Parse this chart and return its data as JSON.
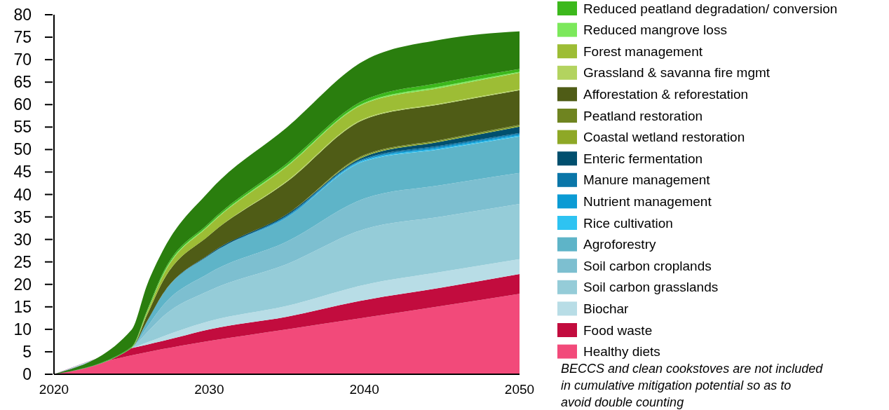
{
  "chart_data": {
    "type": "area",
    "stacked": true,
    "x": [
      2020,
      2025,
      2026,
      2027,
      2030,
      2035,
      2040,
      2045,
      2050
    ],
    "xlim": [
      2020,
      2050
    ],
    "xticks": [
      2020,
      2030,
      2040,
      2050
    ],
    "ylim": [
      0,
      80
    ],
    "yticks": [
      0,
      5,
      10,
      15,
      20,
      25,
      30,
      35,
      40,
      45,
      50,
      55,
      60,
      65,
      70,
      75,
      80
    ],
    "grid": false,
    "legend": "right",
    "annotations": [
      "BECCS and clean cookstoves are not included in cumulative mitigation potential so as to avoid double counting"
    ],
    "series": [
      {
        "name": "Healthy diets",
        "color": "#f24a7a",
        "values": [
          0,
          4.2,
          4.9,
          5.6,
          7.4,
          10.0,
          12.6,
          15.2,
          17.9
        ]
      },
      {
        "name": "Food waste",
        "color": "#c20c3e",
        "values": [
          0,
          1.6,
          1.7,
          1.8,
          2.6,
          2.8,
          3.9,
          4.1,
          4.4
        ]
      },
      {
        "name": "Biochar",
        "color": "#b8dde6",
        "values": [
          0,
          0,
          0.5,
          1.0,
          1.8,
          2.4,
          3.4,
          3.5,
          3.3
        ]
      },
      {
        "name": "Soil carbon grasslands",
        "color": "#95ccd8",
        "values": [
          0,
          0,
          2.2,
          4.4,
          6.8,
          9.3,
          12.4,
          12.3,
          12.3
        ]
      },
      {
        "name": "Soil carbon croplands",
        "color": "#7dbfd0",
        "values": [
          0,
          0,
          1.2,
          2.4,
          3.9,
          5.0,
          6.8,
          7.0,
          6.9
        ]
      },
      {
        "name": "Agroforestry",
        "color": "#5eb4c8",
        "values": [
          0,
          0,
          1.3,
          2.6,
          4.0,
          5.4,
          8.3,
          8.0,
          8.1
        ]
      },
      {
        "name": "Rice cultivation",
        "color": "#2ec3f2",
        "values": [
          0,
          0,
          0,
          0,
          0,
          0,
          0.2,
          0.2,
          0.2
        ]
      },
      {
        "name": "Nutrient management",
        "color": "#0b9bd4",
        "values": [
          0,
          0,
          0,
          0,
          0,
          0.2,
          0.2,
          0.3,
          0.3
        ]
      },
      {
        "name": "Manure management",
        "color": "#0a76a8",
        "values": [
          0,
          0,
          0,
          0,
          0,
          0.2,
          0.2,
          0.3,
          0.3
        ]
      },
      {
        "name": "Enteric fermentation",
        "color": "#004f6e",
        "values": [
          0,
          0,
          0,
          0,
          0.2,
          0.3,
          0.4,
          0.9,
          1.4
        ]
      },
      {
        "name": "Coastal wetland restoration",
        "color": "#8ea826",
        "values": [
          0,
          0,
          0,
          0,
          0,
          0,
          0.2,
          0.2,
          0.2
        ]
      },
      {
        "name": "Peatland restoration",
        "color": "#6f8420",
        "values": [
          0,
          0,
          0,
          0,
          0,
          0,
          0.2,
          0.2,
          0.2
        ]
      },
      {
        "name": "Afforestation & reforestation",
        "color": "#4f5c16",
        "values": [
          0,
          0,
          1.4,
          2.8,
          4.2,
          7.2,
          7.9,
          7.9,
          7.7
        ]
      },
      {
        "name": "Grassland & savanna fire mgmt",
        "color": "#b3d35f",
        "values": [
          0,
          0,
          0,
          0,
          0,
          0.2,
          0.2,
          0.2,
          0.2
        ]
      },
      {
        "name": "Forest management",
        "color": "#9dbd35",
        "values": [
          0,
          0,
          0.6,
          1.2,
          2.2,
          3.2,
          3.3,
          3.5,
          3.7
        ]
      },
      {
        "name": "Reduced mangrove loss",
        "color": "#7ce85b",
        "values": [
          0,
          0.1,
          0.1,
          0.2,
          0.2,
          0.2,
          0.2,
          0.3,
          0.2
        ]
      },
      {
        "name": "Reduced peatland degradation/ conversion",
        "color": "#3cb81c",
        "values": [
          0,
          0.2,
          0.3,
          0.4,
          0.4,
          0.5,
          0.6,
          0.8,
          0.6
        ]
      },
      {
        "color": "#2a7e0e",
        "values": [
          0,
          3.8,
          5.7,
          5.0,
          7.0,
          8.0,
          8.8,
          9.6,
          8.4
        ]
      }
    ]
  }
}
